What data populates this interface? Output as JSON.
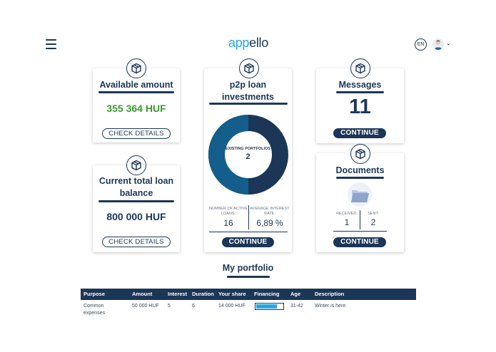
{
  "header": {
    "logo_part1": "app",
    "logo_part2": "ello",
    "language": "EN"
  },
  "colors": {
    "navy": "#1c3657",
    "accent": "#29a8e0",
    "green": "#3a9a2e"
  },
  "cards": {
    "available": {
      "title": "Available amount",
      "value": "355 364 HUF",
      "button": "CHECK DETAILS",
      "icon": "box-icon"
    },
    "loan_balance": {
      "title_line1": "Current total loan",
      "title_line2": "balance",
      "value": "800 000 HUF",
      "button": "CHECK DETAILS",
      "icon": "box-icon"
    },
    "p2p": {
      "title_line1": "p2p loan",
      "title_line2": "investments",
      "donut_label": "EXISTING PORTFOLIOS",
      "donut_value": "2",
      "stat1_label_line1": "NUMBER OF ACTIVE",
      "stat1_label_line2": "LOANS:",
      "stat1_value": "16",
      "stat2_label_line1": "AVERAGE INTEREST",
      "stat2_label_line2": "RATE:",
      "stat2_value": "6,89 %",
      "button": "CONTINUE",
      "icon": "box-icon"
    },
    "messages": {
      "title": "Messages",
      "value": "11",
      "button": "CONTINUE",
      "icon": "box-icon"
    },
    "documents": {
      "title": "Documents",
      "received_label": "RECEIVED:",
      "received_value": "1",
      "sent_label": "SENT:",
      "sent_value": "2",
      "button": "CONTINUE",
      "icon": "box-icon"
    }
  },
  "portfolio": {
    "title": "My portfolio",
    "columns": [
      "Purpose",
      "Amount",
      "Interest",
      "Duration",
      "Your share",
      "Financing",
      "Age",
      "Description"
    ],
    "rows": [
      {
        "purpose_line1": "Common",
        "purpose_line2": "expenses",
        "amount": "50 000 HUF",
        "interest": "5",
        "duration": "6",
        "share": "14 000 HUF",
        "financing_fraction": 0.78,
        "age": "31-42",
        "description": "Winter is here."
      }
    ]
  }
}
